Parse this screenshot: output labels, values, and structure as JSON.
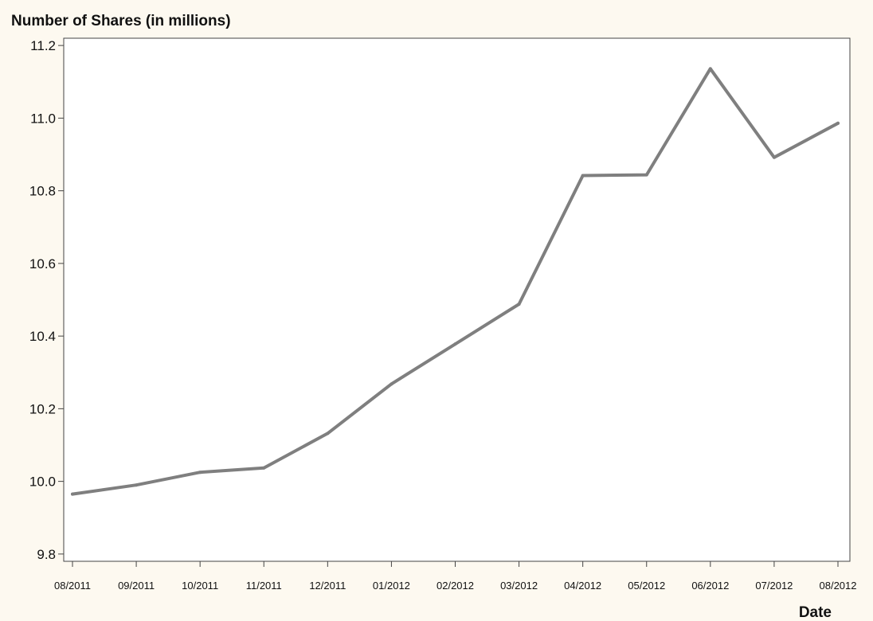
{
  "chart_data": {
    "type": "line",
    "ylabel": "Number of Shares (in millions)",
    "xlabel": "Date",
    "ylim": [
      9.78,
      11.22
    ],
    "yticks": [
      "9.8",
      "10.0",
      "10.2",
      "10.4",
      "10.6",
      "10.8",
      "11.0",
      "11.2"
    ],
    "categories": [
      "08/2011",
      "09/2011",
      "10/2011",
      "11/2011",
      "12/2011",
      "01/2012",
      "02/2012",
      "03/2012",
      "04/2012",
      "05/2012",
      "06/2012",
      "07/2012",
      "08/2012"
    ],
    "series": [
      {
        "values": [
          9.965,
          9.99,
          10.025,
          10.037,
          10.132,
          10.268,
          10.378,
          10.488,
          10.842,
          10.844,
          11.136,
          10.892,
          10.986
        ],
        "color": "#7f7f7f"
      }
    ],
    "grid": false,
    "legend": "none"
  }
}
